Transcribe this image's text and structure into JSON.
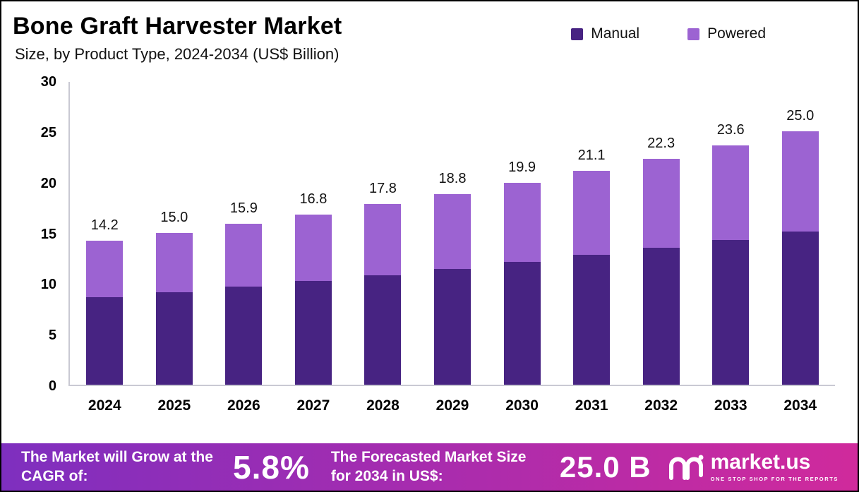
{
  "header": {
    "title": "Bone Graft Harvester Market",
    "subtitle": "Size, by Product Type, 2024-2034 (US$ Billion)"
  },
  "chart_data": {
    "type": "bar",
    "stacked": true,
    "title": "Bone Graft Harvester Market Size, by Product Type, 2024-2034 (US$ Billion)",
    "categories": [
      "2024",
      "2025",
      "2026",
      "2027",
      "2028",
      "2029",
      "2030",
      "2031",
      "2032",
      "2033",
      "2034"
    ],
    "series": [
      {
        "name": "Manual",
        "color": "#472382",
        "values": [
          8.6,
          9.1,
          9.7,
          10.2,
          10.8,
          11.4,
          12.1,
          12.8,
          13.5,
          14.3,
          15.1
        ]
      },
      {
        "name": "Powered",
        "color": "#9c63d2",
        "values": [
          5.6,
          5.9,
          6.2,
          6.6,
          7.0,
          7.4,
          7.8,
          8.3,
          8.8,
          9.3,
          9.9
        ]
      }
    ],
    "totals": [
      14.2,
      15.0,
      15.9,
      16.8,
      17.8,
      18.8,
      19.9,
      21.1,
      22.3,
      23.6,
      25.0
    ],
    "total_labels": [
      "14.2",
      "15.0",
      "15.9",
      "16.8",
      "17.8",
      "18.8",
      "19.9",
      "21.1",
      "22.3",
      "23.6",
      "25.0"
    ],
    "ylim": [
      0,
      30
    ],
    "yticks": [
      0,
      5,
      10,
      15,
      20,
      25,
      30
    ],
    "grid": false,
    "legend_position": "top-right"
  },
  "footer": {
    "cagr_label": "The Market will Grow at the CAGR of:",
    "cagr_value": "5.8%",
    "forecast_label": "The Forecasted Market Size for 2034 in US$:",
    "forecast_value": "25.0 B",
    "brand": "market.us",
    "brand_tagline": "ONE STOP SHOP FOR THE REPORTS",
    "gradient": [
      "#7e2fbf",
      "#a82cae",
      "#d02a9c"
    ]
  }
}
